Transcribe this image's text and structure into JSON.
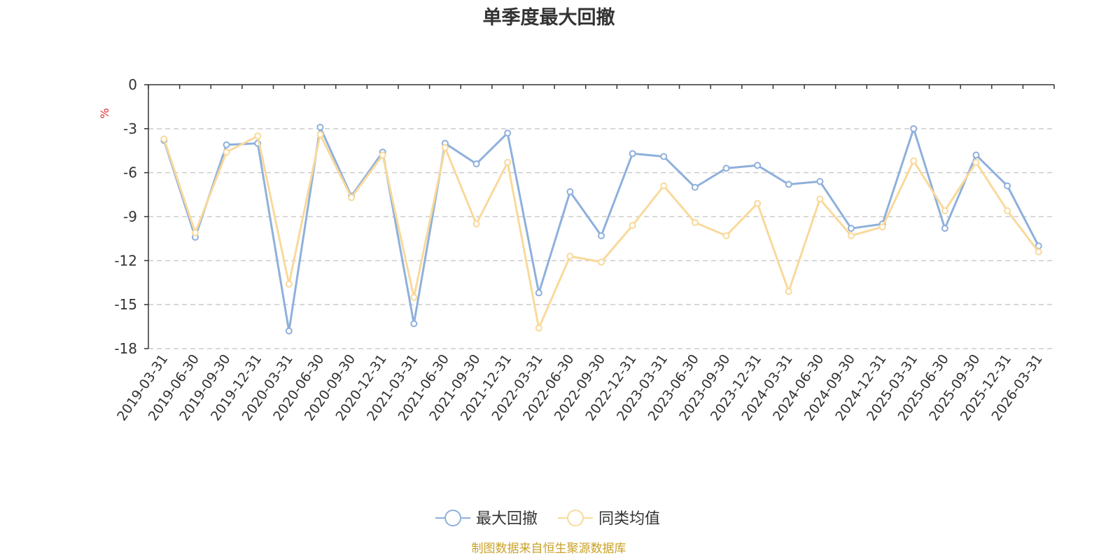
{
  "chart_data": {
    "type": "line",
    "title": "单季度最大回撤",
    "ylabel": "%",
    "ylim": [
      -18,
      0
    ],
    "yticks": [
      0,
      -3,
      -6,
      -9,
      -12,
      -15,
      -18
    ],
    "grid": true,
    "legend_position": "bottom-center",
    "x": [
      "2019-03-31",
      "2019-06-30",
      "2019-09-30",
      "2019-12-31",
      "2020-03-31",
      "2020-06-30",
      "2020-09-30",
      "2020-12-31",
      "2021-03-31",
      "2021-06-30",
      "2021-09-30",
      "2021-12-31",
      "2022-03-31",
      "2022-06-30",
      "2022-09-30",
      "2022-12-31",
      "2023-03-31",
      "2023-06-30",
      "2023-09-30",
      "2023-12-31",
      "2024-03-31",
      "2024-06-30",
      "2024-09-30",
      "2024-12-31",
      "2025-03-31",
      "2025-06-30",
      "2025-09-30",
      "2025-12-31",
      "2026-03-31"
    ],
    "series": [
      {
        "name": "最大回撤",
        "color": "#8eb0dc",
        "values": [
          -3.8,
          -10.4,
          -4.1,
          -4.0,
          -16.8,
          -2.9,
          -7.6,
          -4.6,
          -16.3,
          -4.0,
          -5.4,
          -3.3,
          -14.2,
          -7.3,
          -10.3,
          -4.7,
          -4.9,
          -7.0,
          -5.7,
          -5.5,
          -6.8,
          -6.6,
          -9.8,
          -9.5,
          -3.0,
          -9.8,
          -4.8,
          -6.9,
          -11.0
        ]
      },
      {
        "name": "同类均值",
        "color": "#f9d99b",
        "values": [
          -3.7,
          -10.1,
          -4.6,
          -3.5,
          -13.6,
          -3.4,
          -7.7,
          -4.8,
          -14.5,
          -4.3,
          -9.5,
          -5.3,
          -16.6,
          -11.7,
          -12.1,
          -9.6,
          -6.9,
          -9.4,
          -10.3,
          -8.1,
          -14.1,
          -7.8,
          -10.3,
          -9.7,
          -5.2,
          -8.6,
          -5.3,
          -8.6,
          -11.4
        ]
      }
    ],
    "source_note": "制图数据来自恒生聚源数据库",
    "colors": {
      "axis": "#333333",
      "grid": "#cccccc",
      "unit": "#e03030",
      "source": "#c9a227"
    }
  }
}
